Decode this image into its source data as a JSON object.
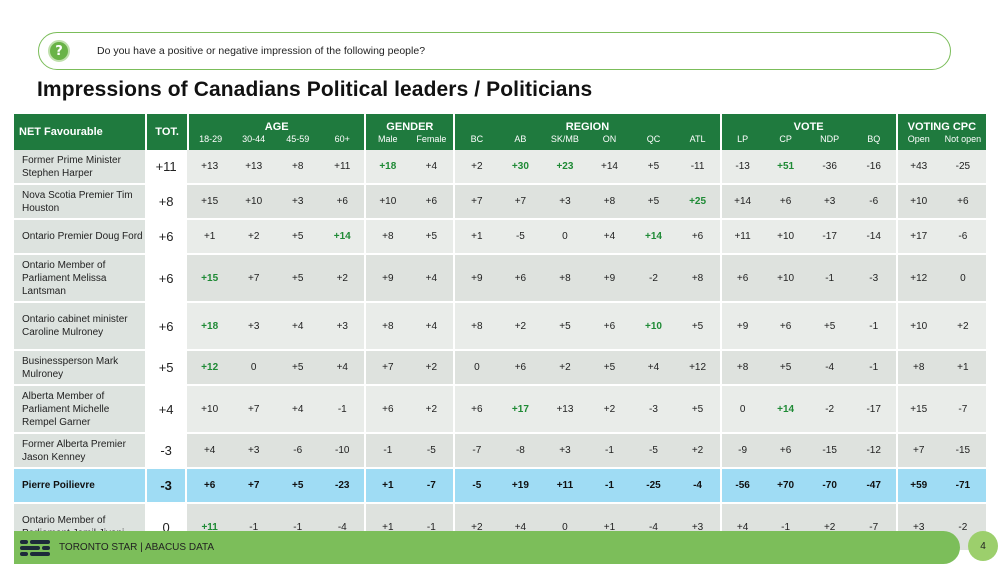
{
  "question": "Do you have a positive or negative impression of the following people?",
  "title": "Impressions of Canadians Political leaders / Politicians",
  "header": {
    "net_fav": "NET Favourable",
    "tot": "TOT.",
    "groups": {
      "age": "AGE",
      "gender": "GENDER",
      "region": "REGION",
      "vote": "VOTE",
      "voting_cpc": "VOTING CPC"
    },
    "age": [
      "18-29",
      "30-44",
      "45-59",
      "60+"
    ],
    "gender": [
      "Male",
      "Female"
    ],
    "region": [
      "BC",
      "AB",
      "SK/MB",
      "ON",
      "QC",
      "ATL"
    ],
    "vote": [
      "LP",
      "CP",
      "NDP",
      "BQ"
    ],
    "voting_cpc": [
      "Open",
      "Not open"
    ]
  },
  "rows": [
    {
      "name": "Former Prime Minister Stephen Harper",
      "tot": "+11",
      "vals": [
        "+13",
        "+13",
        "+8",
        "+11",
        "+18",
        "+4",
        "+2",
        "+30",
        "+23",
        "+14",
        "+5",
        "-11",
        "-13",
        "+51",
        "-36",
        "-16",
        "+43",
        "-25"
      ],
      "hl": [
        4,
        7,
        8,
        13
      ]
    },
    {
      "name": "Nova Scotia Premier Tim Houston",
      "tot": "+8",
      "vals": [
        "+15",
        "+10",
        "+3",
        "+6",
        "+10",
        "+6",
        "+7",
        "+7",
        "+3",
        "+8",
        "+5",
        "+25",
        "+14",
        "+6",
        "+3",
        "-6",
        "+10",
        "+6"
      ],
      "hl": [
        11
      ]
    },
    {
      "name": "Ontario Premier Doug Ford",
      "tot": "+6",
      "vals": [
        "+1",
        "+2",
        "+5",
        "+14",
        "+8",
        "+5",
        "+1",
        "-5",
        "0",
        "+4",
        "+14",
        "+6",
        "+11",
        "+10",
        "-17",
        "-14",
        "+17",
        "-6"
      ],
      "hl": [
        3,
        10
      ]
    },
    {
      "name": "Ontario Member of Parliament Melissa Lantsman",
      "tot": "+6",
      "vals": [
        "+15",
        "+7",
        "+5",
        "+2",
        "+9",
        "+4",
        "+9",
        "+6",
        "+8",
        "+9",
        "-2",
        "+8",
        "+6",
        "+10",
        "-1",
        "-3",
        "+12",
        "0"
      ],
      "hl": [
        0
      ]
    },
    {
      "name": "Ontario cabinet minister Caroline Mulroney",
      "tot": "+6",
      "vals": [
        "+18",
        "+3",
        "+4",
        "+3",
        "+8",
        "+4",
        "+8",
        "+2",
        "+5",
        "+6",
        "+10",
        "+5",
        "+9",
        "+6",
        "+5",
        "-1",
        "+10",
        "+2"
      ],
      "hl": [
        0,
        10
      ]
    },
    {
      "name": "Businessperson Mark Mulroney",
      "tot": "+5",
      "vals": [
        "+12",
        "0",
        "+5",
        "+4",
        "+7",
        "+2",
        "0",
        "+6",
        "+2",
        "+5",
        "+4",
        "+12",
        "+8",
        "+5",
        "-4",
        "-1",
        "+8",
        "+1"
      ],
      "hl": [
        0
      ]
    },
    {
      "name": "Alberta Member of Parliament Michelle Rempel Garner",
      "tot": "+4",
      "vals": [
        "+10",
        "+7",
        "+4",
        "-1",
        "+6",
        "+2",
        "+6",
        "+17",
        "+13",
        "+2",
        "-3",
        "+5",
        "0",
        "+14",
        "-2",
        "-17",
        "+15",
        "-7"
      ],
      "hl": [
        7,
        13
      ]
    },
    {
      "name": "Former Alberta Premier Jason Kenney",
      "tot": "-3",
      "vals": [
        "+4",
        "+3",
        "-6",
        "-10",
        "-1",
        "-5",
        "-7",
        "-8",
        "+3",
        "-1",
        "-5",
        "+2",
        "-9",
        "+6",
        "-15",
        "-12",
        "+7",
        "-15"
      ],
      "hl": []
    },
    {
      "name": "Pierre Poilievre",
      "tot": "-3",
      "vals": [
        "+6",
        "+7",
        "+5",
        "-23",
        "+1",
        "-7",
        "-5",
        "+19",
        "+11",
        "-1",
        "-25",
        "-4",
        "-56",
        "+70",
        "-70",
        "-47",
        "+59",
        "-71"
      ],
      "hl": [],
      "highlight": true
    },
    {
      "name": "Ontario Member of Parliament Jamil Jivani",
      "tot": "0",
      "vals": [
        "+11",
        "-1",
        "-1",
        "-4",
        "+1",
        "-1",
        "+2",
        "+4",
        "0",
        "+1",
        "-4",
        "+3",
        "+4",
        "-1",
        "+2",
        "-7",
        "+3",
        "-2"
      ],
      "hl": [
        0
      ]
    }
  ],
  "footer": {
    "text": "TORONTO STAR  |  ABACUS DATA",
    "page": "4"
  },
  "colors": {
    "header_green": "#1f7a3e",
    "footer_green": "#7cbe5a",
    "highlight_blue": "#9fdcf4",
    "positive_green": "#1e8a35"
  },
  "icons": {
    "question": "question-mark-icon",
    "logo": "abacus-logo-icon"
  }
}
